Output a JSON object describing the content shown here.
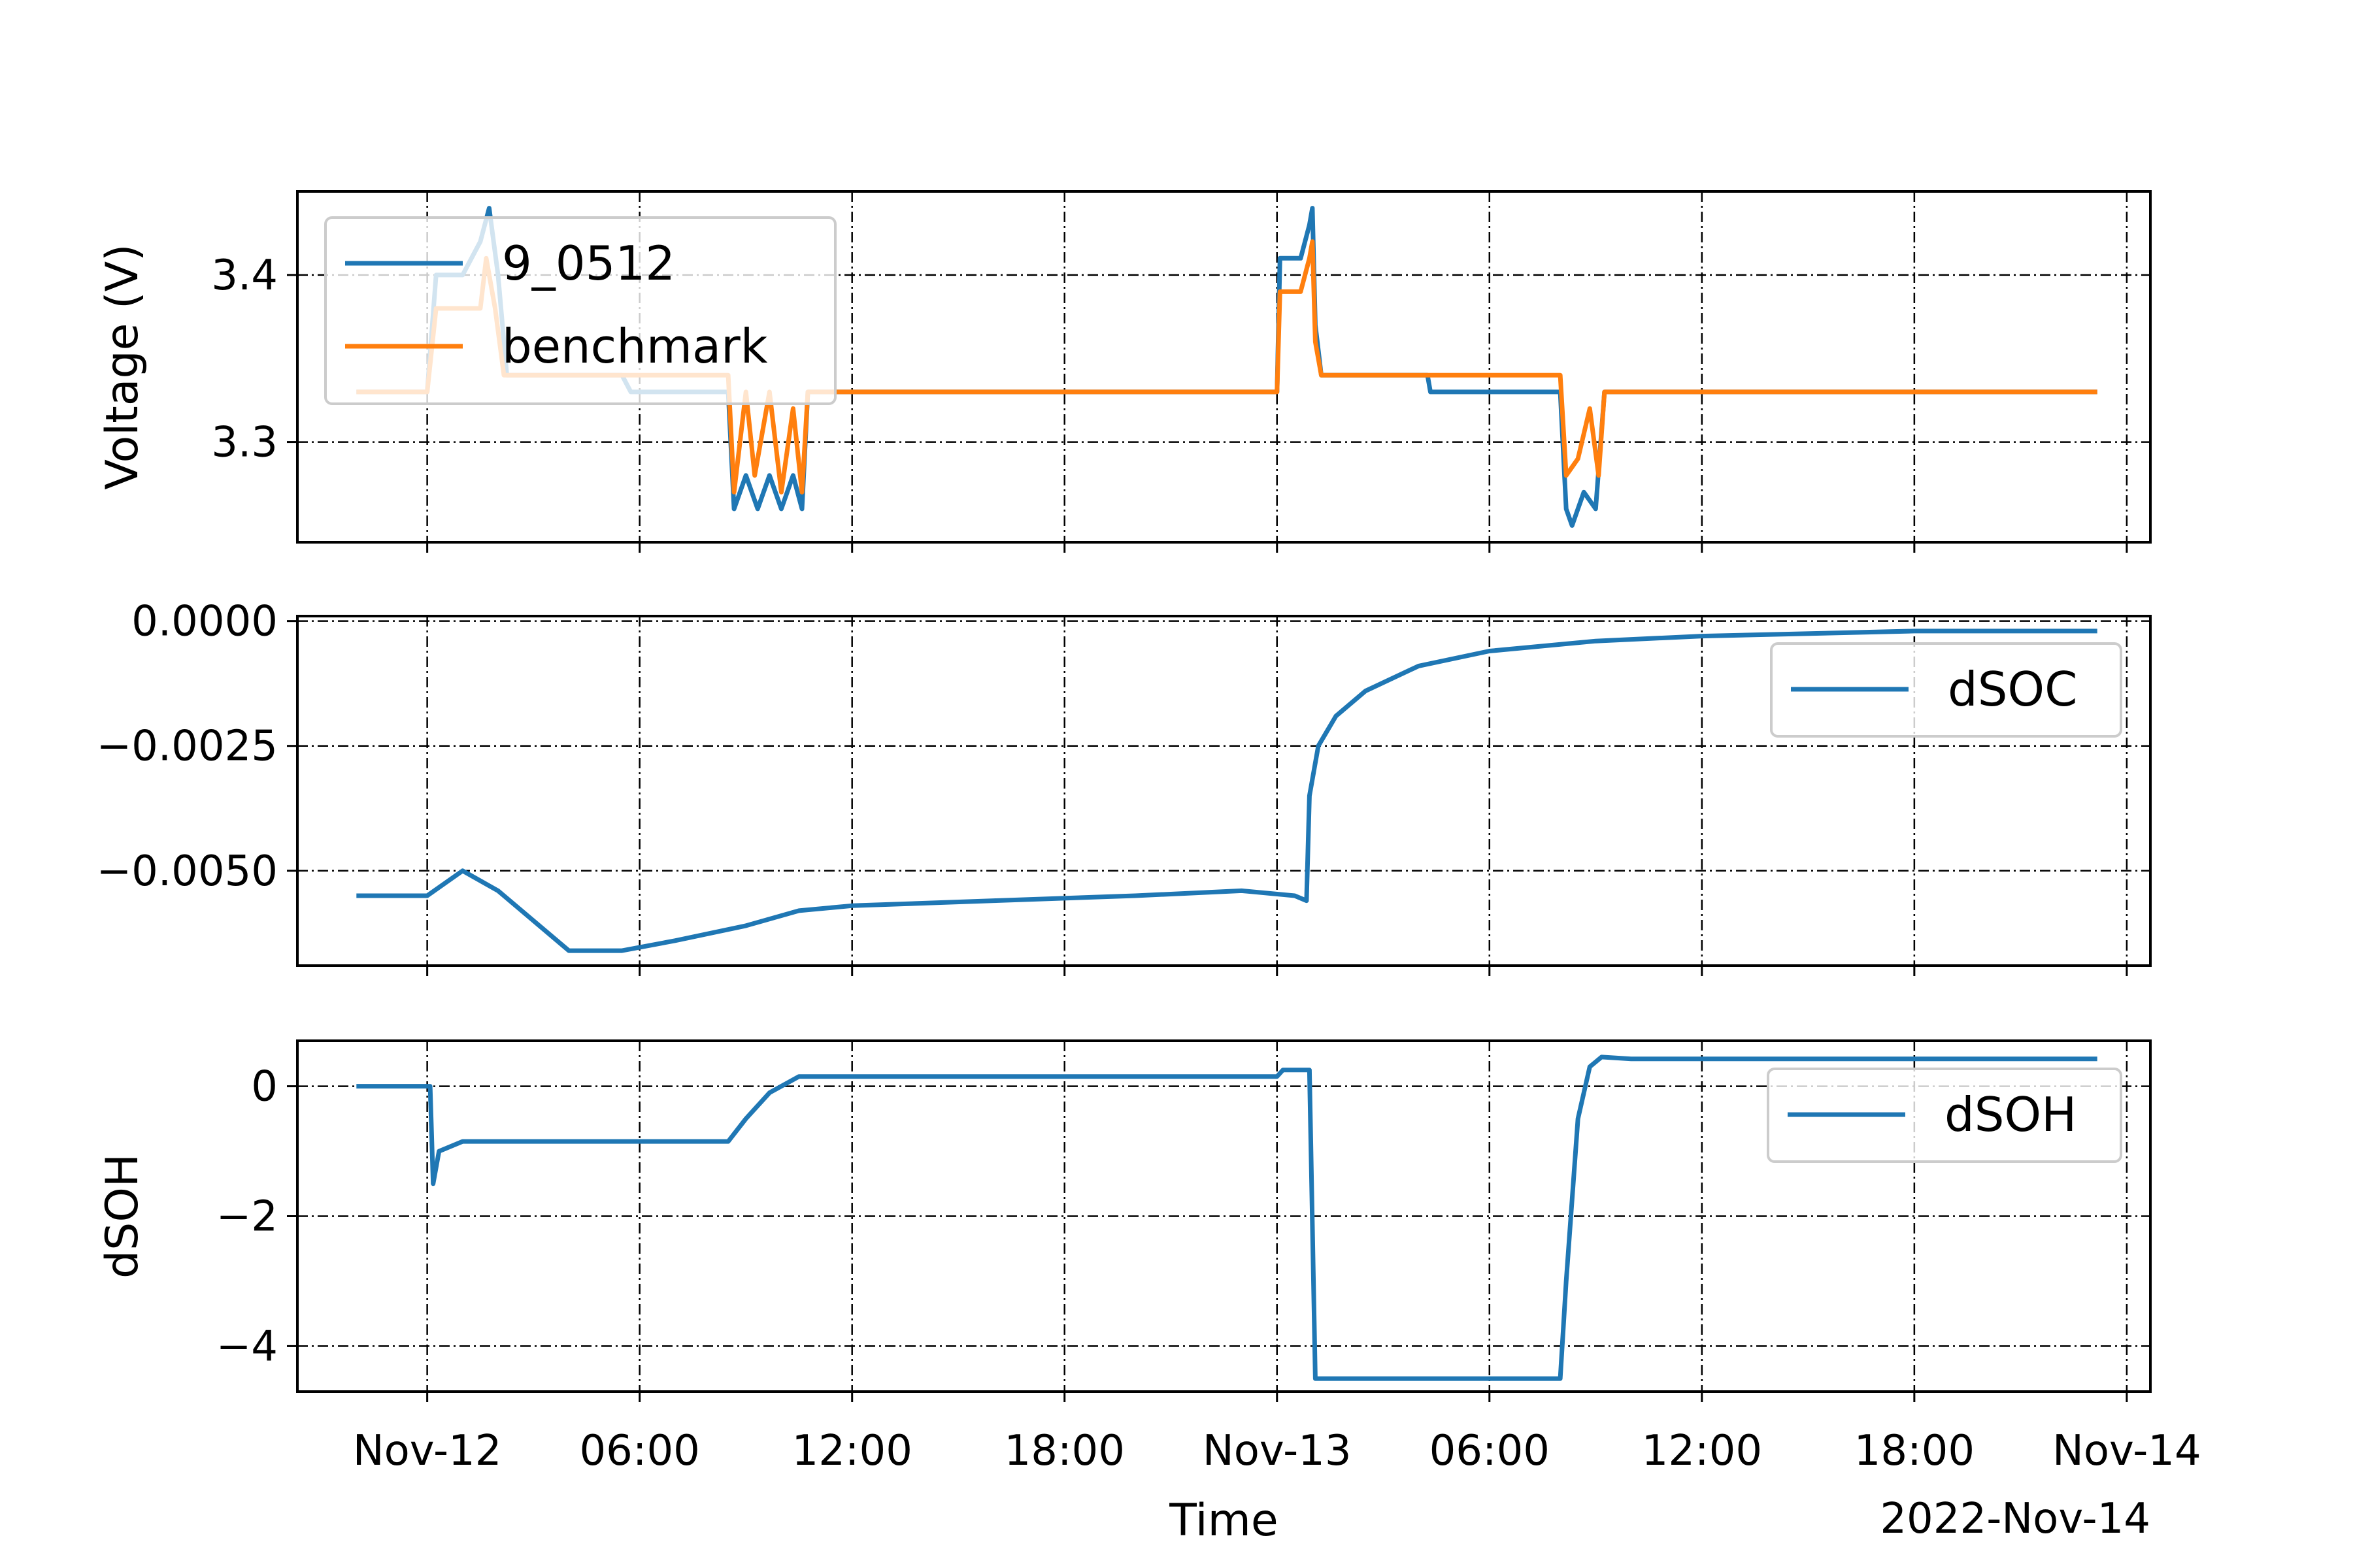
{
  "chart_data": [
    {
      "type": "line",
      "panel": "voltage",
      "ylabel": "Voltage (V)",
      "ylim": [
        3.24,
        3.45
      ],
      "yticks": [
        3.3,
        3.4
      ],
      "ytick_labels": [
        "3.3",
        "3.4"
      ],
      "grid": true,
      "legend_position": "upper-left",
      "series": [
        {
          "name": "9_0512",
          "color": "#1f77b4",
          "points": [
            [
              "2022-11-11T22:00",
              3.33
            ],
            [
              "2022-11-12T00:00",
              3.33
            ],
            [
              "2022-11-12T00:15",
              3.4
            ],
            [
              "2022-11-12T01:00",
              3.4
            ],
            [
              "2022-11-12T01:30",
              3.42
            ],
            [
              "2022-11-12T01:45",
              3.44
            ],
            [
              "2022-11-12T02:00",
              3.4
            ],
            [
              "2022-11-12T02:15",
              3.34
            ],
            [
              "2022-11-12T05:30",
              3.34
            ],
            [
              "2022-11-12T05:45",
              3.33
            ],
            [
              "2022-11-12T08:30",
              3.33
            ],
            [
              "2022-11-12T08:40",
              3.26
            ],
            [
              "2022-11-12T09:00",
              3.28
            ],
            [
              "2022-11-12T09:20",
              3.26
            ],
            [
              "2022-11-12T09:40",
              3.28
            ],
            [
              "2022-11-12T10:00",
              3.26
            ],
            [
              "2022-11-12T10:20",
              3.28
            ],
            [
              "2022-11-12T10:35",
              3.26
            ],
            [
              "2022-11-12T10:45",
              3.33
            ],
            [
              "2022-11-13T00:00",
              3.33
            ],
            [
              "2022-11-13T00:05",
              3.41
            ],
            [
              "2022-11-13T00:40",
              3.41
            ],
            [
              "2022-11-13T00:55",
              3.43
            ],
            [
              "2022-11-13T01:00",
              3.44
            ],
            [
              "2022-11-13T01:05",
              3.37
            ],
            [
              "2022-11-13T01:15",
              3.34
            ],
            [
              "2022-11-13T04:15",
              3.34
            ],
            [
              "2022-11-13T04:20",
              3.33
            ],
            [
              "2022-11-13T08:00",
              3.33
            ],
            [
              "2022-11-13T08:10",
              3.26
            ],
            [
              "2022-11-13T08:20",
              3.25
            ],
            [
              "2022-11-13T08:40",
              3.27
            ],
            [
              "2022-11-13T09:00",
              3.26
            ],
            [
              "2022-11-13T09:15",
              3.33
            ],
            [
              "2022-11-13T23:10",
              3.33
            ]
          ]
        },
        {
          "name": "benchmark",
          "color": "#ff7f0e",
          "points": [
            [
              "2022-11-11T22:00",
              3.33
            ],
            [
              "2022-11-12T00:00",
              3.33
            ],
            [
              "2022-11-12T00:15",
              3.38
            ],
            [
              "2022-11-12T01:30",
              3.38
            ],
            [
              "2022-11-12T01:40",
              3.41
            ],
            [
              "2022-11-12T01:55",
              3.38
            ],
            [
              "2022-11-12T02:10",
              3.34
            ],
            [
              "2022-11-12T08:30",
              3.34
            ],
            [
              "2022-11-12T08:40",
              3.27
            ],
            [
              "2022-11-12T09:00",
              3.33
            ],
            [
              "2022-11-12T09:15",
              3.28
            ],
            [
              "2022-11-12T09:40",
              3.33
            ],
            [
              "2022-11-12T10:00",
              3.27
            ],
            [
              "2022-11-12T10:20",
              3.32
            ],
            [
              "2022-11-12T10:35",
              3.27
            ],
            [
              "2022-11-12T10:45",
              3.33
            ],
            [
              "2022-11-13T00:00",
              3.33
            ],
            [
              "2022-11-13T00:05",
              3.39
            ],
            [
              "2022-11-13T00:40",
              3.39
            ],
            [
              "2022-11-13T00:55",
              3.41
            ],
            [
              "2022-11-13T01:00",
              3.42
            ],
            [
              "2022-11-13T01:05",
              3.36
            ],
            [
              "2022-11-13T01:15",
              3.34
            ],
            [
              "2022-11-13T08:00",
              3.34
            ],
            [
              "2022-11-13T08:10",
              3.28
            ],
            [
              "2022-11-13T08:30",
              3.29
            ],
            [
              "2022-11-13T08:50",
              3.32
            ],
            [
              "2022-11-13T09:05",
              3.28
            ],
            [
              "2022-11-13T09:15",
              3.33
            ],
            [
              "2022-11-13T23:10",
              3.33
            ]
          ]
        }
      ]
    },
    {
      "type": "line",
      "panel": "dsoc",
      "ylabel": "",
      "ylim": [
        -0.0069,
        0.0001
      ],
      "yticks": [
        0.0,
        -0.0025,
        -0.005
      ],
      "ytick_labels": [
        "0.0000",
        "−0.0025",
        "−0.0050"
      ],
      "grid": true,
      "legend_position": "upper-right",
      "series": [
        {
          "name": "dSOC",
          "color": "#1f77b4",
          "points": [
            [
              "2022-11-11T22:00",
              -0.0055
            ],
            [
              "2022-11-12T00:00",
              -0.0055
            ],
            [
              "2022-11-12T01:00",
              -0.005
            ],
            [
              "2022-11-12T02:00",
              -0.0054
            ],
            [
              "2022-11-12T04:00",
              -0.0066
            ],
            [
              "2022-11-12T05:30",
              -0.0066
            ],
            [
              "2022-11-12T07:00",
              -0.0064
            ],
            [
              "2022-11-12T09:00",
              -0.0061
            ],
            [
              "2022-11-12T10:30",
              -0.0058
            ],
            [
              "2022-11-12T12:00",
              -0.0057
            ],
            [
              "2022-11-12T16:00",
              -0.0056
            ],
            [
              "2022-11-12T20:00",
              -0.0055
            ],
            [
              "2022-11-12T23:00",
              -0.0054
            ],
            [
              "2022-11-13T00:30",
              -0.0055
            ],
            [
              "2022-11-13T00:50",
              -0.0056
            ],
            [
              "2022-11-13T00:55",
              -0.0035
            ],
            [
              "2022-11-13T01:10",
              -0.0025
            ],
            [
              "2022-11-13T01:40",
              -0.0019
            ],
            [
              "2022-11-13T02:30",
              -0.0014
            ],
            [
              "2022-11-13T04:00",
              -0.0009
            ],
            [
              "2022-11-13T06:00",
              -0.0006
            ],
            [
              "2022-11-13T09:00",
              -0.0004
            ],
            [
              "2022-11-13T12:00",
              -0.0003
            ],
            [
              "2022-11-13T18:00",
              -0.0002
            ],
            [
              "2022-11-13T23:10",
              -0.0002
            ]
          ]
        }
      ]
    },
    {
      "type": "line",
      "panel": "dsoh",
      "ylabel": "dSOH",
      "ylim": [
        -4.7,
        0.7
      ],
      "yticks": [
        0,
        -2,
        -4
      ],
      "ytick_labels": [
        "0",
        "−2",
        "−4"
      ],
      "grid": true,
      "legend_position": "upper-right",
      "xlabel": "Time",
      "xlim": [
        "2022-11-11T20:20",
        "2022-11-14T00:40"
      ],
      "xticks": [
        "2022-11-12T00:00",
        "2022-11-12T06:00",
        "2022-11-12T12:00",
        "2022-11-12T18:00",
        "2022-11-13T00:00",
        "2022-11-13T06:00",
        "2022-11-13T12:00",
        "2022-11-13T18:00",
        "2022-11-14T00:00"
      ],
      "xtick_labels": [
        "Nov-12",
        "06:00",
        "12:00",
        "18:00",
        "Nov-13",
        "06:00",
        "12:00",
        "18:00",
        "Nov-14"
      ],
      "x_offset_label": "2022-Nov-14",
      "series": [
        {
          "name": "dSOH",
          "color": "#1f77b4",
          "points": [
            [
              "2022-11-11T22:00",
              0.0
            ],
            [
              "2022-11-12T00:05",
              0.0
            ],
            [
              "2022-11-12T00:10",
              -1.5
            ],
            [
              "2022-11-12T00:20",
              -1.0
            ],
            [
              "2022-11-12T01:00",
              -0.85
            ],
            [
              "2022-11-12T08:30",
              -0.85
            ],
            [
              "2022-11-12T09:00",
              -0.5
            ],
            [
              "2022-11-12T09:40",
              -0.1
            ],
            [
              "2022-11-12T10:30",
              0.15
            ],
            [
              "2022-11-13T00:00",
              0.15
            ],
            [
              "2022-11-13T00:10",
              0.25
            ],
            [
              "2022-11-13T00:55",
              0.25
            ],
            [
              "2022-11-13T01:05",
              -4.5
            ],
            [
              "2022-11-13T08:00",
              -4.5
            ],
            [
              "2022-11-13T08:10",
              -3.0
            ],
            [
              "2022-11-13T08:30",
              -0.5
            ],
            [
              "2022-11-13T08:50",
              0.3
            ],
            [
              "2022-11-13T09:10",
              0.45
            ],
            [
              "2022-11-13T10:00",
              0.42
            ],
            [
              "2022-11-13T23:10",
              0.42
            ]
          ]
        }
      ]
    }
  ]
}
